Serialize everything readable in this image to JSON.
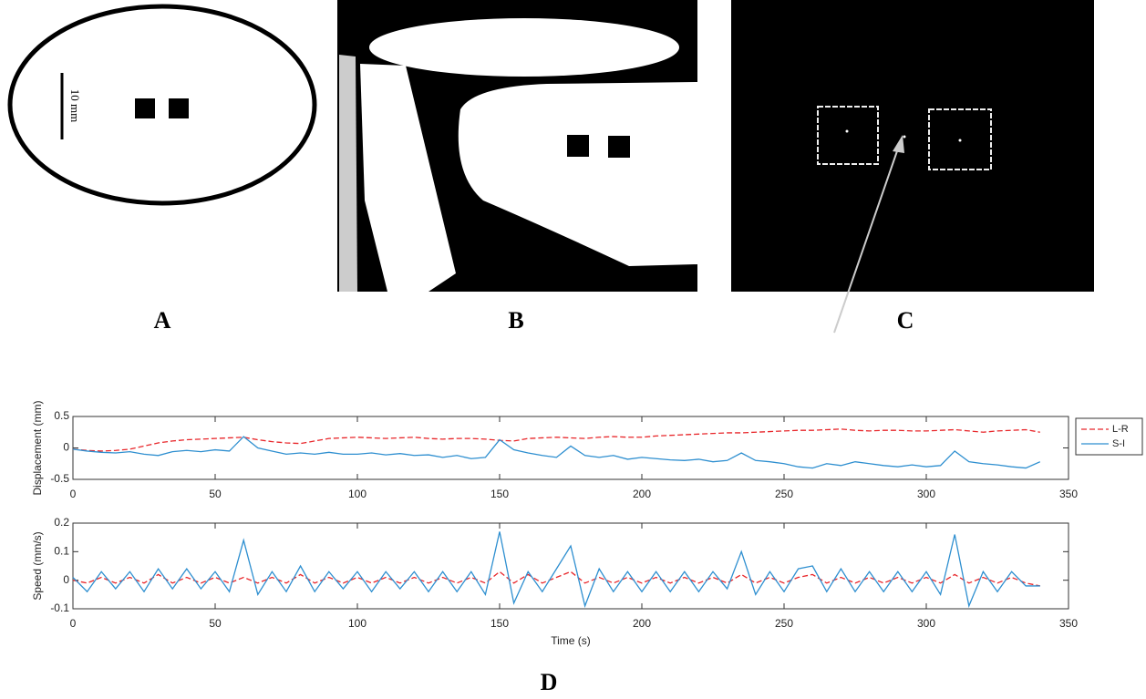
{
  "panels": {
    "labels": [
      "A",
      "B",
      "C",
      "D"
    ],
    "scale_label": "10 mm"
  },
  "chart_data": [
    {
      "type": "line",
      "ylabel": "Displacement (mm)",
      "x": [
        0,
        5,
        10,
        15,
        20,
        25,
        30,
        35,
        40,
        45,
        50,
        55,
        60,
        65,
        70,
        75,
        80,
        85,
        90,
        95,
        100,
        105,
        110,
        115,
        120,
        125,
        130,
        135,
        140,
        145,
        150,
        155,
        160,
        165,
        170,
        175,
        180,
        185,
        190,
        195,
        200,
        205,
        210,
        215,
        220,
        225,
        230,
        235,
        240,
        245,
        250,
        255,
        260,
        265,
        270,
        275,
        280,
        285,
        290,
        295,
        300,
        305,
        310,
        315,
        320,
        325,
        330,
        335,
        340
      ],
      "series": [
        {
          "name": "L-R",
          "color": "#e8262a",
          "linestyle": "dashed",
          "values": [
            -0.02,
            -0.04,
            -0.05,
            -0.04,
            -0.02,
            0.03,
            0.08,
            0.11,
            0.13,
            0.14,
            0.15,
            0.16,
            0.17,
            0.13,
            0.1,
            0.08,
            0.07,
            0.11,
            0.15,
            0.16,
            0.17,
            0.16,
            0.15,
            0.16,
            0.17,
            0.15,
            0.14,
            0.15,
            0.15,
            0.14,
            0.12,
            0.11,
            0.15,
            0.16,
            0.17,
            0.16,
            0.15,
            0.17,
            0.18,
            0.17,
            0.17,
            0.19,
            0.2,
            0.21,
            0.22,
            0.23,
            0.24,
            0.24,
            0.25,
            0.26,
            0.27,
            0.28,
            0.28,
            0.29,
            0.3,
            0.28,
            0.27,
            0.28,
            0.28,
            0.27,
            0.27,
            0.28,
            0.29,
            0.27,
            0.25,
            0.27,
            0.28,
            0.29,
            0.25
          ]
        },
        {
          "name": "S-I",
          "color": "#2e8fd0",
          "linestyle": "solid",
          "values": [
            -0.02,
            -0.05,
            -0.07,
            -0.08,
            -0.06,
            -0.1,
            -0.12,
            -0.06,
            -0.04,
            -0.06,
            -0.03,
            -0.05,
            0.18,
            0.0,
            -0.05,
            -0.1,
            -0.08,
            -0.1,
            -0.07,
            -0.1,
            -0.1,
            -0.08,
            -0.11,
            -0.09,
            -0.12,
            -0.11,
            -0.15,
            -0.12,
            -0.17,
            -0.15,
            0.13,
            -0.03,
            -0.08,
            -0.12,
            -0.15,
            0.03,
            -0.12,
            -0.15,
            -0.12,
            -0.18,
            -0.15,
            -0.17,
            -0.19,
            -0.2,
            -0.18,
            -0.22,
            -0.2,
            -0.08,
            -0.2,
            -0.22,
            -0.25,
            -0.3,
            -0.32,
            -0.25,
            -0.28,
            -0.22,
            -0.25,
            -0.28,
            -0.3,
            -0.27,
            -0.3,
            -0.28,
            -0.05,
            -0.22,
            -0.25,
            -0.27,
            -0.3,
            -0.32,
            -0.22
          ]
        }
      ],
      "xlim": [
        0,
        350
      ],
      "xticks": [
        0,
        50,
        100,
        150,
        200,
        250,
        300,
        350
      ],
      "ylim": [
        -0.5,
        0.5
      ],
      "yticks": [
        -0.5,
        0,
        0.5
      ],
      "legend": "outside-right"
    },
    {
      "type": "line",
      "ylabel": "Speed (mm/s)",
      "xlabel": "Time (s)",
      "x": [
        0,
        5,
        10,
        15,
        20,
        25,
        30,
        35,
        40,
        45,
        50,
        55,
        60,
        65,
        70,
        75,
        80,
        85,
        90,
        95,
        100,
        105,
        110,
        115,
        120,
        125,
        130,
        135,
        140,
        145,
        150,
        155,
        160,
        165,
        170,
        175,
        180,
        185,
        190,
        195,
        200,
        205,
        210,
        215,
        220,
        225,
        230,
        235,
        240,
        245,
        250,
        255,
        260,
        265,
        270,
        275,
        280,
        285,
        290,
        295,
        300,
        305,
        310,
        315,
        320,
        325,
        330,
        335,
        340
      ],
      "series": [
        {
          "color": "#e8262a",
          "linestyle": "dashed",
          "values": [
            0.0,
            -0.01,
            0.01,
            -0.01,
            0.01,
            -0.01,
            0.02,
            -0.01,
            0.01,
            -0.01,
            0.01,
            -0.01,
            0.01,
            -0.01,
            0.01,
            -0.01,
            0.02,
            -0.01,
            0.01,
            -0.01,
            0.01,
            -0.01,
            0.01,
            -0.01,
            0.01,
            -0.01,
            0.01,
            -0.01,
            0.01,
            -0.01,
            0.03,
            -0.01,
            0.02,
            -0.01,
            0.01,
            0.03,
            -0.01,
            0.01,
            -0.01,
            0.01,
            -0.01,
            0.01,
            -0.01,
            0.01,
            -0.01,
            0.01,
            -0.01,
            0.02,
            -0.01,
            0.01,
            -0.01,
            0.01,
            0.02,
            -0.01,
            0.01,
            -0.01,
            0.01,
            -0.01,
            0.01,
            -0.01,
            0.01,
            -0.01,
            0.02,
            -0.01,
            0.01,
            -0.01,
            0.01,
            -0.01,
            -0.02
          ]
        },
        {
          "color": "#2e8fd0",
          "linestyle": "solid",
          "values": [
            0.01,
            -0.04,
            0.03,
            -0.03,
            0.03,
            -0.04,
            0.04,
            -0.03,
            0.04,
            -0.03,
            0.03,
            -0.04,
            0.14,
            -0.05,
            0.03,
            -0.04,
            0.05,
            -0.04,
            0.03,
            -0.03,
            0.03,
            -0.04,
            0.03,
            -0.03,
            0.03,
            -0.04,
            0.03,
            -0.04,
            0.03,
            -0.05,
            0.17,
            -0.08,
            0.03,
            -0.04,
            0.04,
            0.12,
            -0.09,
            0.04,
            -0.04,
            0.03,
            -0.04,
            0.03,
            -0.04,
            0.03,
            -0.04,
            0.03,
            -0.03,
            0.1,
            -0.05,
            0.03,
            -0.04,
            0.04,
            0.05,
            -0.04,
            0.04,
            -0.04,
            0.03,
            -0.04,
            0.03,
            -0.04,
            0.03,
            -0.05,
            0.16,
            -0.09,
            0.03,
            -0.04,
            0.03,
            -0.02,
            -0.02
          ]
        }
      ],
      "xlim": [
        0,
        350
      ],
      "xticks": [
        0,
        50,
        100,
        150,
        200,
        250,
        300,
        350
      ],
      "ylim": [
        -0.1,
        0.2
      ],
      "yticks": [
        -0.1,
        0,
        0.1,
        0.2
      ]
    }
  ]
}
